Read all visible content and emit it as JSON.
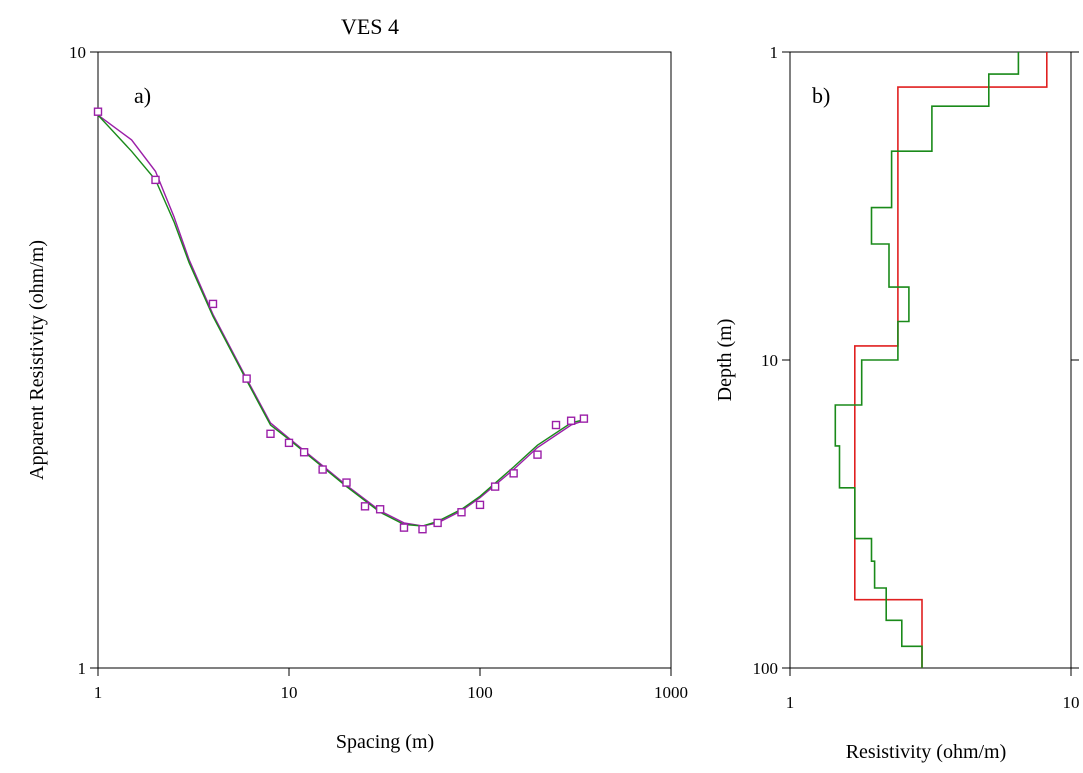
{
  "title": "VES 4",
  "colors": {
    "axis": "#000000",
    "measured": "#9b1fa8",
    "model_curve": "#9b1fa8",
    "inverted_curve": "#1a8a1a",
    "layered_model": "#e02020",
    "smooth_model": "#1a8a1a"
  },
  "chart_data": [
    {
      "type": "scatter",
      "panel_label": "a)",
      "xlabel": "Spacing (m)",
      "ylabel": "Apparent Resistivity (ohm/m)",
      "xscale": "log",
      "yscale": "log",
      "xlim": [
        1,
        1000
      ],
      "ylim": [
        1,
        10
      ],
      "xticks": [
        1,
        10,
        100,
        1000
      ],
      "xtick_labels": [
        "1",
        "10",
        "100",
        "1000"
      ],
      "yticks": [
        1,
        10
      ],
      "ytick_labels": [
        "1",
        "10"
      ],
      "series": [
        {
          "style": "markers-square",
          "color": "#9b1fa8",
          "x": [
            1,
            2,
            4,
            6,
            8,
            10,
            12,
            15,
            20,
            25,
            30,
            40,
            50,
            60,
            80,
            100,
            120,
            150,
            200,
            250,
            300,
            350
          ],
          "y": [
            8.0,
            6.2,
            3.9,
            2.95,
            2.4,
            2.32,
            2.24,
            2.1,
            2.0,
            1.83,
            1.81,
            1.69,
            1.68,
            1.72,
            1.79,
            1.84,
            1.97,
            2.07,
            2.22,
            2.48,
            2.52,
            2.54
          ]
        },
        {
          "style": "line",
          "color": "#9b1fa8",
          "x": [
            1,
            1.5,
            2,
            2.5,
            3,
            4,
            6,
            8,
            10,
            15,
            20,
            30,
            40,
            50,
            60,
            80,
            100,
            150,
            200,
            300,
            350
          ],
          "y": [
            7.9,
            7.2,
            6.4,
            5.4,
            4.6,
            3.75,
            2.95,
            2.5,
            2.36,
            2.13,
            1.98,
            1.8,
            1.72,
            1.7,
            1.72,
            1.8,
            1.89,
            2.1,
            2.28,
            2.48,
            2.52
          ]
        },
        {
          "style": "line",
          "color": "#1a8a1a",
          "x": [
            1,
            1.5,
            2,
            2.5,
            3,
            4,
            6,
            8,
            10,
            15,
            20,
            30,
            40,
            50,
            60,
            80,
            100,
            150,
            200,
            300,
            350
          ],
          "y": [
            7.9,
            6.9,
            6.2,
            5.3,
            4.55,
            3.72,
            2.93,
            2.48,
            2.35,
            2.12,
            1.97,
            1.79,
            1.71,
            1.7,
            1.73,
            1.81,
            1.9,
            2.12,
            2.3,
            2.5,
            2.53
          ]
        }
      ]
    },
    {
      "type": "line",
      "panel_label": "b)",
      "xlabel": "Resistivity (ohm/m)",
      "ylabel": "Depth (m)",
      "xscale": "log",
      "yscale": "log",
      "y_inverted": true,
      "xlim": [
        1,
        10
      ],
      "ylim": [
        1,
        100
      ],
      "xticks": [
        1,
        10
      ],
      "xtick_labels": [
        "1",
        "10"
      ],
      "yticks": [
        1,
        10,
        100
      ],
      "ytick_labels": [
        "1",
        "10",
        "100"
      ],
      "series": [
        {
          "style": "step",
          "color": "#e02020",
          "resistivity": [
            8.2,
            2.42,
            1.7,
            2.95
          ],
          "layer_bottom_depth": [
            1.3,
            9.0,
            60.0,
            100.0
          ]
        },
        {
          "style": "step",
          "color": "#1a8a1a",
          "resistivity": [
            6.5,
            5.1,
            3.2,
            2.3,
            1.95,
            2.25,
            2.65,
            2.42,
            1.8,
            1.45,
            1.5,
            1.7,
            1.95,
            2.0,
            2.2,
            2.5,
            2.95
          ],
          "layer_bottom_depth": [
            1.18,
            1.5,
            2.1,
            3.2,
            4.2,
            5.8,
            7.5,
            10.0,
            14.0,
            19.0,
            26.0,
            38.0,
            45.0,
            55.0,
            70.0,
            85.0,
            100.0
          ]
        }
      ]
    }
  ]
}
